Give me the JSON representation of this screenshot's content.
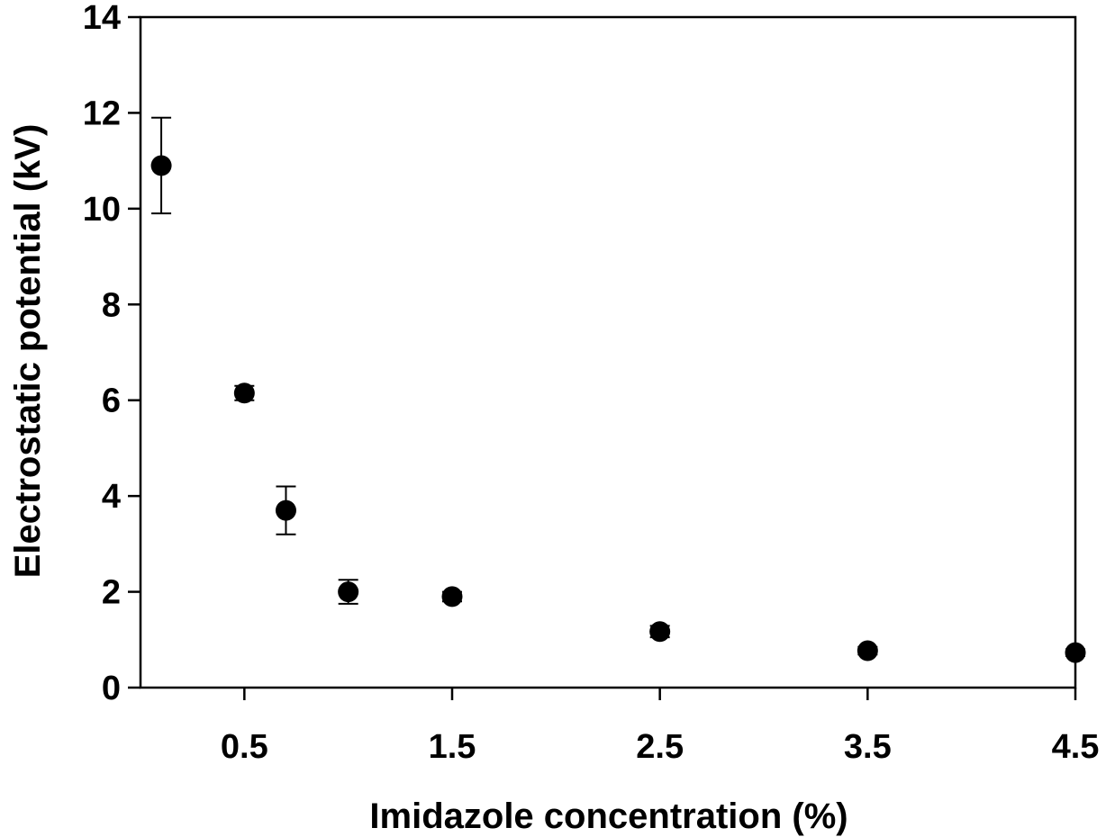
{
  "chart_data": {
    "type": "scatter",
    "title": "",
    "xlabel": "Imidazole concentration (%)",
    "ylabel": "Electrostatic potential (kV)",
    "xlim": [
      0,
      4.5
    ],
    "ylim": [
      0,
      14
    ],
    "x_ticks": [
      0.5,
      1.5,
      2.5,
      3.5,
      4.5
    ],
    "x_tick_labels": [
      "0.5",
      "1.5",
      "2.5",
      "3.5",
      "4.5"
    ],
    "y_ticks": [
      0,
      2,
      4,
      6,
      8,
      10,
      12,
      14
    ],
    "y_tick_labels": [
      "0",
      "2",
      "4",
      "6",
      "8",
      "10",
      "12",
      "14"
    ],
    "grid": false,
    "legend": "none",
    "marker_color": "#000000",
    "points": [
      {
        "x": 0.1,
        "y": 10.9,
        "err": 1.0
      },
      {
        "x": 0.5,
        "y": 6.15,
        "err": 0.15
      },
      {
        "x": 0.7,
        "y": 3.7,
        "err": 0.5
      },
      {
        "x": 1.0,
        "y": 2.0,
        "err": 0.25
      },
      {
        "x": 1.5,
        "y": 1.9,
        "err": 0.1
      },
      {
        "x": 2.5,
        "y": 1.17,
        "err": 0.12
      },
      {
        "x": 3.5,
        "y": 0.77,
        "err": 0.08
      },
      {
        "x": 4.5,
        "y": 0.73,
        "err": 0.07
      }
    ]
  }
}
